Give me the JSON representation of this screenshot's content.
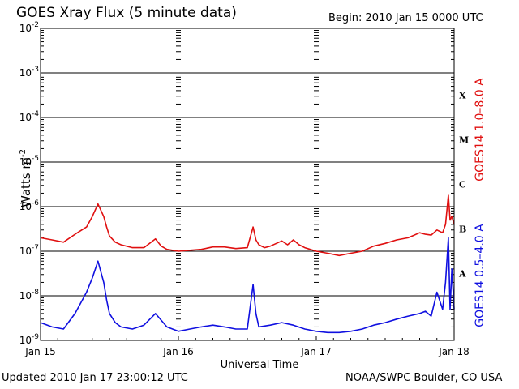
{
  "header": {
    "title": "GOES Xray Flux (5 minute data)",
    "begin": "Begin:  2010 Jan 15 0000 UTC"
  },
  "footer": {
    "updated": "Updated 2010 Jan 17 23:00:12 UTC",
    "credit": "NOAA/SWPC Boulder, CO USA"
  },
  "chart_data": {
    "type": "line",
    "title": "GOES Xray Flux (5 minute data)",
    "ylabel": "Watts m",
    "ylabel_superscript": "-2",
    "xlabel": "Universal Time",
    "yscale": "log",
    "ylim": [
      1e-09,
      0.01
    ],
    "xlim": [
      0,
      72
    ],
    "x_unit": "hours since 2010 Jan 15 0000 UTC",
    "x_ticks": [
      {
        "x": 0,
        "label": "Jan 15"
      },
      {
        "x": 24,
        "label": "Jan 16"
      },
      {
        "x": 48,
        "label": "Jan 17"
      },
      {
        "x": 72,
        "label": "Jan 18"
      }
    ],
    "y_ticks": [
      {
        "exp": -2,
        "label": "10",
        "sup": "-2"
      },
      {
        "exp": -3,
        "label": "10",
        "sup": "-3"
      },
      {
        "exp": -4,
        "label": "10",
        "sup": "-4"
      },
      {
        "exp": -5,
        "label": "10",
        "sup": "-5"
      },
      {
        "exp": -6,
        "label": "10",
        "sup": "-6"
      },
      {
        "exp": -7,
        "label": "10",
        "sup": "-7"
      },
      {
        "exp": -8,
        "label": "10",
        "sup": "-8"
      },
      {
        "exp": -9,
        "label": "10",
        "sup": "-9"
      }
    ],
    "flare_classes": [
      {
        "label": "X",
        "exp": -3.5
      },
      {
        "label": "M",
        "exp": -4.5
      },
      {
        "label": "C",
        "exp": -5.5
      },
      {
        "label": "B",
        "exp": -6.5
      },
      {
        "label": "A",
        "exp": -7.5
      }
    ],
    "grid": true,
    "series": [
      {
        "name": "GOES14 1.0–8.0 A",
        "color": "#e01010",
        "x": [
          0,
          2,
          4,
          6,
          8,
          9,
          10,
          11,
          11.5,
          12,
          13,
          14,
          16,
          18,
          20,
          21,
          22,
          24,
          26,
          28,
          30,
          32,
          34,
          36,
          37,
          37.5,
          38,
          39,
          40,
          42,
          43,
          44,
          45,
          46,
          48,
          50,
          52,
          54,
          56,
          58,
          60,
          62,
          64,
          66,
          67,
          68,
          69,
          70,
          70.5,
          71,
          71.3,
          71.6,
          72
        ],
        "values": [
          2e-07,
          1.8e-07,
          1.6e-07,
          2.4e-07,
          3.5e-07,
          6e-07,
          1.15e-06,
          6e-07,
          3.5e-07,
          2.2e-07,
          1.6e-07,
          1.4e-07,
          1.2e-07,
          1.2e-07,
          1.9e-07,
          1.3e-07,
          1.1e-07,
          1e-07,
          1.05e-07,
          1.1e-07,
          1.25e-07,
          1.25e-07,
          1.15e-07,
          1.2e-07,
          3.5e-07,
          1.8e-07,
          1.4e-07,
          1.2e-07,
          1.3e-07,
          1.7e-07,
          1.4e-07,
          1.8e-07,
          1.4e-07,
          1.2e-07,
          1e-07,
          9e-08,
          8e-08,
          9e-08,
          1e-07,
          1.3e-07,
          1.5e-07,
          1.8e-07,
          2e-07,
          2.6e-07,
          2.4e-07,
          2.3e-07,
          3e-07,
          2.6e-07,
          4e-07,
          1.8e-06,
          5e-07,
          6e-07,
          4e-07
        ]
      },
      {
        "name": "GOES14 0.5–4.0 A",
        "color": "#1010e0",
        "x": [
          0,
          2,
          4,
          6,
          8,
          9,
          10,
          11,
          11.5,
          12,
          13,
          14,
          16,
          18,
          20,
          22,
          24,
          26,
          28,
          30,
          32,
          34,
          36,
          37,
          37.5,
          38,
          40,
          42,
          44,
          46,
          48,
          50,
          52,
          54,
          56,
          58,
          60,
          62,
          64,
          66,
          67,
          68,
          69,
          70,
          70.5,
          71,
          71.3,
          71.6,
          72
        ],
        "values": [
          2.5e-09,
          2e-09,
          1.8e-09,
          4e-09,
          1.2e-08,
          2.5e-08,
          6e-08,
          2e-08,
          8e-09,
          4e-09,
          2.5e-09,
          2e-09,
          1.8e-09,
          2.2e-09,
          4e-09,
          2e-09,
          1.6e-09,
          1.8e-09,
          2e-09,
          2.2e-09,
          2e-09,
          1.8e-09,
          1.8e-09,
          1.8e-08,
          4e-09,
          2e-09,
          2.2e-09,
          2.5e-09,
          2.2e-09,
          1.8e-09,
          1.6e-09,
          1.5e-09,
          1.5e-09,
          1.6e-09,
          1.8e-09,
          2.2e-09,
          2.5e-09,
          3e-09,
          3.5e-09,
          4e-09,
          4.5e-09,
          3.5e-09,
          1.2e-08,
          5e-09,
          2e-08,
          2e-07,
          5e-09,
          4e-08,
          5e-09
        ]
      }
    ]
  }
}
